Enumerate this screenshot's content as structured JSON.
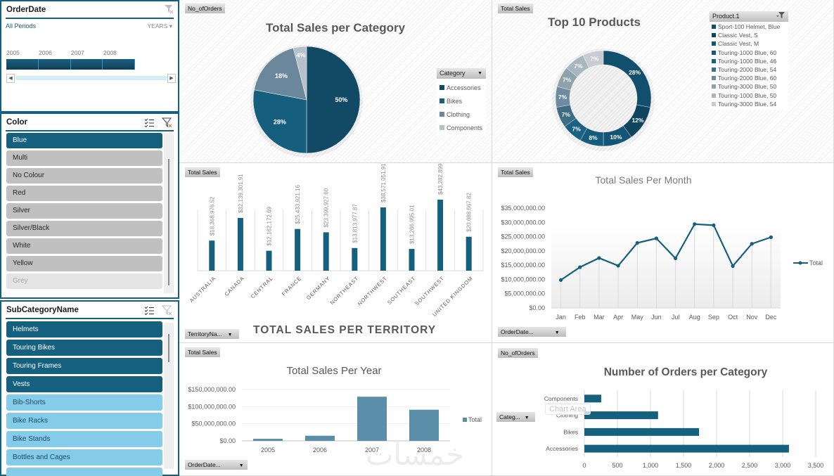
{
  "slicers": {
    "order_date": {
      "title": "OrderDate",
      "all_periods": "All Periods",
      "level": "YEARS",
      "years": [
        "2005",
        "2006",
        "2007",
        "2008"
      ]
    },
    "color": {
      "title": "Color",
      "items": [
        {
          "label": "Blue",
          "state": "sel"
        },
        {
          "label": "Multi",
          "state": "unsel"
        },
        {
          "label": "No Colour",
          "state": "unsel"
        },
        {
          "label": "Red",
          "state": "unsel"
        },
        {
          "label": "Silver",
          "state": "unsel"
        },
        {
          "label": "Silver/Black",
          "state": "unsel"
        },
        {
          "label": "White",
          "state": "unsel"
        },
        {
          "label": "Yellow",
          "state": "unsel"
        },
        {
          "label": "Grey",
          "state": "nodata"
        }
      ]
    },
    "subcategory": {
      "title": "SubCategoryName",
      "items": [
        {
          "label": "Helmets",
          "state": "sel"
        },
        {
          "label": "Touring Bikes",
          "state": "sel"
        },
        {
          "label": "Touring Frames",
          "state": "sel"
        },
        {
          "label": "Vests",
          "state": "sel"
        },
        {
          "label": "Bib-Shorts",
          "state": "lite"
        },
        {
          "label": "Bike Racks",
          "state": "lite"
        },
        {
          "label": "Bike Stands",
          "state": "lite"
        },
        {
          "label": "Bottles and Cages",
          "state": "lite"
        },
        {
          "label": "",
          "state": "lite"
        }
      ]
    }
  },
  "panels": {
    "category_pie": {
      "field_button": "No_ofOrders",
      "legend_field": "Category"
    },
    "top_products": {
      "field_button": "Total Sales",
      "legend_field": "Product.1"
    },
    "territory": {
      "field_button": "Total Sales",
      "axis_field": "TerritoryNa..."
    },
    "monthly": {
      "field_button": "Total Sales",
      "axis_field": "OrderDate..."
    },
    "yearly": {
      "field_button": "Total Sales",
      "axis_field": "OrderDate..."
    },
    "orders": {
      "field_button": "No_ofOrders",
      "axis_field": "Categ...",
      "tooltip": "Chart Area"
    }
  },
  "watermark": "خمسات",
  "colors": {
    "accent": "#15607f",
    "dark": "#0f4a67",
    "bar_year": "#5b8ea8"
  },
  "chart_data": [
    {
      "id": "category_pie",
      "type": "pie",
      "title": "Total Sales per Category",
      "slices": [
        {
          "label": "Accessories",
          "value": 50,
          "display": "50%",
          "color": "#124a66"
        },
        {
          "label": "Bikes",
          "value": 28,
          "display": "28%",
          "color": "#165e7e"
        },
        {
          "label": "Clothing",
          "value": 18,
          "display": "18%",
          "color": "#6a879b"
        },
        {
          "label": "Components",
          "value": 4,
          "display": "4%",
          "color": "#b5c2cc"
        }
      ]
    },
    {
      "id": "top_products",
      "type": "pie",
      "subtype": "donut",
      "title": "Top 10 Products",
      "slices": [
        {
          "label": "Sport-100 Helmet, Blue",
          "value": 28,
          "display": "28%",
          "color": "#124f6c"
        },
        {
          "label": "Classic Vest, S",
          "value": 12,
          "display": "12%",
          "color": "#0f435e"
        },
        {
          "label": "Classic Vest, M",
          "value": 10,
          "display": "10%",
          "color": "#125574"
        },
        {
          "label": "Touring-1000 Blue, 60",
          "value": 8,
          "display": "8%",
          "color": "#155b7b"
        },
        {
          "label": "Touring-1000 Blue, 46",
          "value": 7,
          "display": "7%",
          "color": "#1a6283"
        },
        {
          "label": "Touring-2000 Blue, 54",
          "value": 7,
          "display": "7%",
          "color": "#3f6c85"
        },
        {
          "label": "Touring-2000 Blue, 60",
          "value": 7,
          "display": "7%",
          "color": "#6f8ba0"
        },
        {
          "label": "Touring-3000 Blue, 50",
          "value": 7,
          "display": "7%",
          "color": "#8ea3a9"
        },
        {
          "label": "Touring-1000 Blue, 50",
          "value": 7,
          "display": "7%",
          "color": "#a8b6c0"
        },
        {
          "label": "Touring-3000 Blue, 54",
          "value": 7,
          "display": "7%",
          "color": "#c6ccd1"
        }
      ]
    },
    {
      "id": "territory",
      "type": "bar",
      "title": "TOTAL SALES PER TERRITORY",
      "categories": [
        "AUSTRALIA",
        "CANADA",
        "CENTRAL",
        "FRANCE",
        "GERMANY",
        "NORTHEAST",
        "NORTHWEST",
        "SOUTHEAST",
        "SOUTHWEST",
        "UNITED KINGDOM"
      ],
      "values": [
        18368976.52,
        32139301.91,
        12162172.69,
        25433921.16,
        23399927.6,
        13813977.87,
        38571051.91,
        13266995.01,
        43282899.17,
        20688667.82
      ],
      "labels": [
        "$18,368,976.52",
        "$32,139,301.91",
        "$12,162,172.69",
        "$25,433,921.16",
        "$23,399,927.60",
        "$13,813,977.87",
        "$38,571,051.91",
        "$13,266,995.01",
        "$43,282,899.17",
        "$20,688,667.82"
      ],
      "ylim": [
        0,
        80000000
      ],
      "grid": "vertical"
    },
    {
      "id": "monthly",
      "type": "line",
      "title": "Total Sales Per Month",
      "categories": [
        "Jan",
        "Feb",
        "Mar",
        "Apr",
        "May",
        "Jun",
        "Jul",
        "Aug",
        "Sep",
        "Oct",
        "Nov",
        "Dec"
      ],
      "series": [
        {
          "name": "Total",
          "values": [
            9800000,
            14300000,
            17500000,
            14800000,
            22800000,
            24400000,
            17400000,
            29400000,
            29000000,
            14700000,
            22500000,
            24800000
          ]
        }
      ],
      "yticks": [
        "$0.00",
        "$5,000,000.00",
        "$10,000,000.00",
        "$15,000,000.00",
        "$20,000,000.00",
        "$25,000,000.00",
        "$30,000,000.00",
        "$35,000,000.00"
      ],
      "ylim": [
        0,
        35000000
      ],
      "legend": "right"
    },
    {
      "id": "yearly",
      "type": "bar",
      "title": "Total Sales Per Year",
      "categories": [
        "2005",
        "2006",
        "2007",
        "2008"
      ],
      "series": [
        {
          "name": "Total",
          "values": [
            6000000,
            15000000,
            129000000,
            91000000
          ]
        }
      ],
      "yticks": [
        "$0.00",
        "$50,000,000.00",
        "$100,000,000.00",
        "$150,000,000.00"
      ],
      "ylim": [
        0,
        150000000
      ],
      "legend": "right"
    },
    {
      "id": "orders",
      "type": "bar",
      "orientation": "horizontal",
      "title": "Number of Orders per Category",
      "categories": [
        "Components",
        "Clothing",
        "Bikes",
        "Accessories"
      ],
      "values": [
        255,
        1115,
        1735,
        3095
      ],
      "xticks": [
        "0",
        "500",
        "1,000",
        "1,500",
        "2,000",
        "2,500",
        "3,000",
        "3,500"
      ],
      "xlim": [
        0,
        3500
      ]
    }
  ]
}
